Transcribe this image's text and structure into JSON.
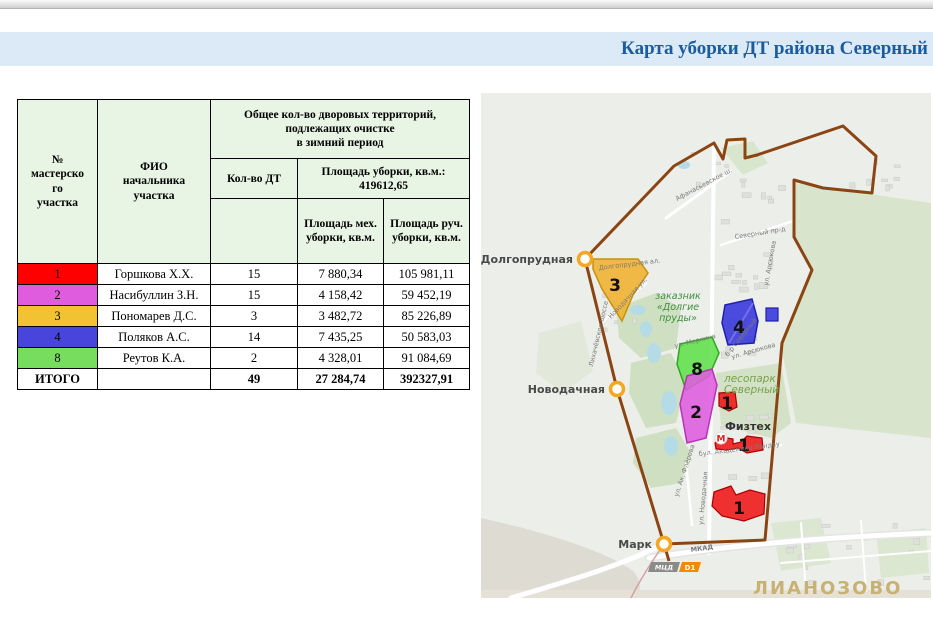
{
  "banner": {
    "title": "Карта уборки ДТ района Северный"
  },
  "table": {
    "headers": {
      "num": "№\nмастерско\nго\nучастка",
      "fio": "ФИО\nначальника\nучастка",
      "group": "Общее кол-во дворовых территорий,\nподлежащих очистке\nв зимний период",
      "dt": "Кол-во ДТ",
      "area": "Площадь уборки, кв.м.:\n419612,65",
      "mech": "Площадь мех.\nуборки, кв.м.",
      "hand": "Площадь руч.\nуборки, кв.м."
    },
    "rows": [
      {
        "num": "1",
        "color": "#fe0000",
        "name": "Горшкова Х.Х.",
        "dt": "15",
        "mech": "7 880,34",
        "hand": "105 981,11"
      },
      {
        "num": "2",
        "color": "#df5cdf",
        "name": "Насибуллин З.Н.",
        "dt": "15",
        "mech": "4 158,42",
        "hand": "59 452,19"
      },
      {
        "num": "3",
        "color": "#f1c232",
        "name": "Пономарев Д.С.",
        "dt": "3",
        "mech": "3 482,72",
        "hand": "85 226,89"
      },
      {
        "num": "4",
        "color": "#4745dc",
        "name": "Поляков А.С.",
        "dt": "14",
        "mech": "7 435,25",
        "hand": "50 583,03"
      },
      {
        "num": "8",
        "color": "#77dd5e",
        "name": "Реутов К.А.",
        "dt": "2",
        "mech": "4 328,01",
        "hand": "91 084,69"
      }
    ],
    "total": {
      "label": "ИТОГО",
      "dt": "49",
      "mech": "27 284,74",
      "hand": "392327,91"
    }
  },
  "map": {
    "stations": [
      {
        "name": "Долгопрудная"
      },
      {
        "name": "Новодачная"
      },
      {
        "name": "Марк"
      }
    ],
    "zone_labels": [
      {
        "n": "3"
      },
      {
        "n": "4"
      },
      {
        "n": "8"
      },
      {
        "n": "2"
      },
      {
        "n": "1"
      },
      {
        "n": "1"
      },
      {
        "n": "1"
      }
    ],
    "zone_colors": {
      "z1": "#ee1c1c",
      "z2": "#df5cdf",
      "z3": "#f0b02c",
      "z4": "#3434dc",
      "z8": "#5fe049"
    },
    "reserve_label": [
      "заказник",
      "«Долгие",
      "пруды»"
    ],
    "forest_label": [
      "лесопарк",
      "Северный"
    ],
    "fiztekh_label": "Физтех",
    "metro_letter": "М",
    "streets": [
      {
        "label": "Афанасьевское ш."
      },
      {
        "label": "Северный пр-д"
      },
      {
        "label": "ул. Арсюкова"
      },
      {
        "label": "ул. Меркина"
      },
      {
        "label": "б-р Северный"
      },
      {
        "label": "ул. Арсюкова"
      },
      {
        "label": "Новодачная ул."
      },
      {
        "label": "Лихачёвское шоссе"
      },
      {
        "label": "Долгопрудная ал."
      },
      {
        "label": "бул. Академика Ландау"
      },
      {
        "label": "ул. Ак. Флёрова"
      },
      {
        "label": "ул. Новодачная"
      },
      {
        "label": "МКАД"
      }
    ],
    "badge": {
      "mcd": "МЦД",
      "line": "D1"
    },
    "district_label": "ЛИАНОЗОВО",
    "colors": {
      "boundary": "#8b4513",
      "station_ring": "#f5a623",
      "lianozovo": "#c9b173",
      "banner_bg": "#dce9f6",
      "header_bg": "#e8f4e4",
      "title": "#1b5c9e"
    }
  }
}
